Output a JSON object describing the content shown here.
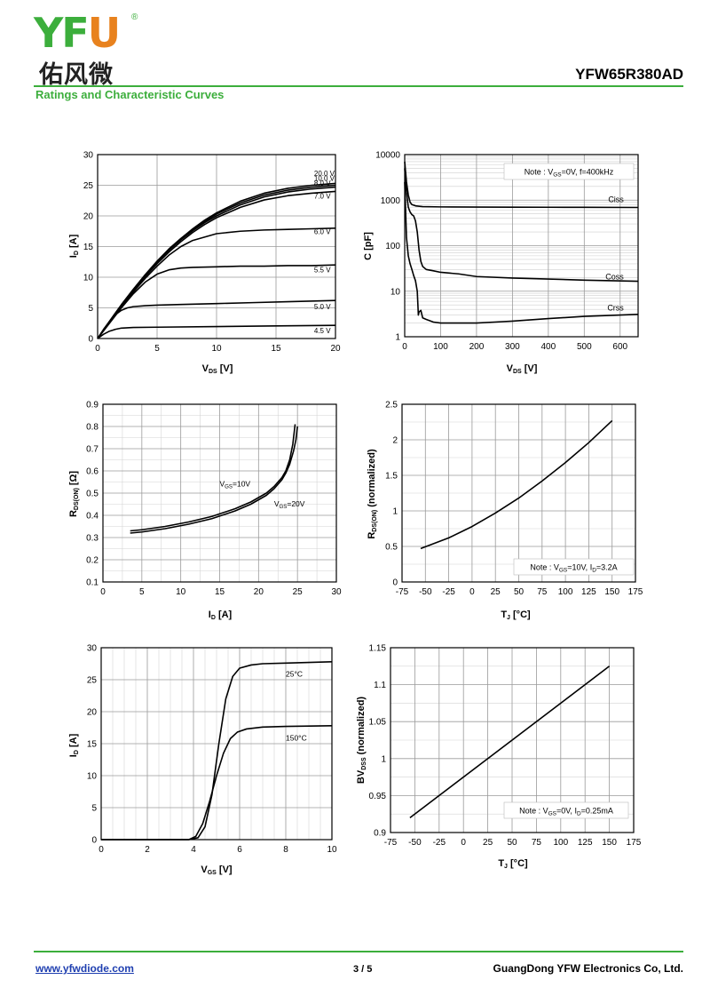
{
  "header": {
    "logo_latin_1": "YF",
    "logo_latin_2": "U",
    "logo_reg": "®",
    "logo_cn": "佑风微",
    "part_number": "YFW65R380AD",
    "section_title": "Ratings and Characteristic Curves",
    "colors": {
      "accent": "#3cae3c",
      "logo_orange": "#e8821e",
      "link": "#1f3fb0"
    }
  },
  "footer": {
    "url": "www.yfwdiode.com",
    "page": "3 / 5",
    "company": "GuangDong YFW Electronics Co, Ltd."
  },
  "chart_data": [
    {
      "type": "line",
      "xlabel": "VDS [V]",
      "ylabel": "ID [A]",
      "xlim": [
        0,
        20
      ],
      "ylim": [
        0,
        30
      ],
      "xticks": [
        0,
        5,
        10,
        15,
        20
      ],
      "yticks": [
        0,
        5,
        10,
        15,
        20,
        25,
        30
      ],
      "grid": true,
      "series": [
        {
          "name": "20.0 V",
          "x": [
            0,
            1,
            2,
            3,
            4,
            5,
            6,
            7,
            8,
            9,
            10,
            12,
            14,
            16,
            18,
            20
          ],
          "y": [
            0,
            2.8,
            5.5,
            8,
            10.4,
            12.6,
            14.6,
            16.3,
            17.9,
            19.3,
            20.5,
            22.4,
            23.7,
            24.5,
            25,
            25.3
          ]
        },
        {
          "name": "10.0 V",
          "x": [
            0,
            1,
            2,
            3,
            4,
            5,
            6,
            7,
            8,
            9,
            10,
            12,
            14,
            16,
            18,
            20
          ],
          "y": [
            0,
            2.8,
            5.5,
            8,
            10.4,
            12.6,
            14.6,
            16.3,
            17.8,
            19.1,
            20.3,
            22.1,
            23.4,
            24.2,
            24.7,
            25
          ]
        },
        {
          "name": "8.0 V",
          "x": [
            0,
            1,
            2,
            3,
            4,
            5,
            6,
            7,
            8,
            9,
            10,
            12,
            14,
            16,
            18,
            20
          ],
          "y": [
            0,
            2.8,
            5.5,
            8,
            10.3,
            12.5,
            14.4,
            16.1,
            17.6,
            18.9,
            20,
            21.8,
            23.1,
            23.9,
            24.4,
            24.7
          ]
        },
        {
          "name": "7.0 V",
          "x": [
            0,
            1,
            2,
            3,
            4,
            5,
            6,
            7,
            8,
            9,
            10,
            12,
            14,
            16,
            18,
            20
          ],
          "y": [
            0,
            2.7,
            5.4,
            7.8,
            10.1,
            12.2,
            14.1,
            15.8,
            17.3,
            18.6,
            19.7,
            21.4,
            22.6,
            23.3,
            23.7,
            24
          ]
        },
        {
          "name": "6.0 V",
          "x": [
            0,
            1,
            2,
            3,
            4,
            5,
            6,
            7,
            8,
            10,
            12,
            14,
            16,
            18,
            20
          ],
          "y": [
            0,
            2.6,
            5.2,
            7.6,
            9.8,
            11.8,
            13.6,
            15,
            16,
            17.1,
            17.5,
            17.7,
            17.8,
            17.9,
            18
          ]
        },
        {
          "name": "5.5 V",
          "x": [
            0,
            1,
            2,
            3,
            4,
            5,
            6,
            7,
            8,
            10,
            12,
            14,
            16,
            18,
            20
          ],
          "y": [
            0,
            2.5,
            5,
            7.3,
            9.2,
            10.5,
            11.2,
            11.5,
            11.6,
            11.7,
            11.8,
            11.8,
            11.9,
            11.9,
            12
          ]
        },
        {
          "name": "5.0 V",
          "x": [
            0,
            0.5,
            1,
            1.5,
            2,
            2.5,
            3,
            4,
            5,
            7,
            10,
            13,
            16,
            20
          ],
          "y": [
            0,
            1.5,
            2.8,
            3.9,
            4.6,
            5,
            5.2,
            5.35,
            5.45,
            5.55,
            5.7,
            5.85,
            6,
            6.2
          ]
        },
        {
          "name": "4.5 V",
          "x": [
            0,
            0.5,
            1,
            1.5,
            2,
            3,
            5,
            10,
            15,
            20
          ],
          "y": [
            0,
            0.7,
            1.2,
            1.5,
            1.7,
            1.8,
            1.85,
            1.95,
            2.05,
            2.15
          ]
        }
      ]
    },
    {
      "type": "line",
      "xlabel": "VDS [V]",
      "ylabel": "C [pF]",
      "xlim": [
        0,
        650
      ],
      "ylim": [
        1,
        10000
      ],
      "yscale": "log",
      "xticks": [
        0,
        100,
        200,
        300,
        400,
        500,
        600
      ],
      "yticks": [
        1,
        10,
        100,
        1000,
        10000
      ],
      "grid": true,
      "note": "Note : VGS=0V, f=400kHz",
      "series": [
        {
          "name": "Ciss",
          "x": [
            0,
            5,
            10,
            15,
            20,
            30,
            50,
            100,
            200,
            300,
            400,
            500,
            650
          ],
          "y": [
            7000,
            2500,
            1300,
            900,
            800,
            750,
            720,
            710,
            705,
            700,
            698,
            695,
            690
          ]
        },
        {
          "name": "Coss",
          "x": [
            0,
            5,
            10,
            15,
            20,
            25,
            30,
            35,
            40,
            45,
            50,
            60,
            80,
            100,
            150,
            200,
            300,
            400,
            500,
            650
          ],
          "y": [
            5000,
            1500,
            700,
            550,
            480,
            450,
            350,
            200,
            80,
            45,
            35,
            30,
            28,
            26,
            24,
            21,
            19.5,
            18.5,
            17.5,
            16.5
          ]
        },
        {
          "name": "Crss",
          "x": [
            0,
            5,
            10,
            15,
            20,
            25,
            30,
            35,
            38,
            40,
            45,
            50,
            60,
            80,
            100,
            150,
            200,
            250,
            300,
            400,
            500,
            650
          ],
          "y": [
            2500,
            150,
            60,
            40,
            30,
            22,
            17,
            10,
            3,
            3.5,
            3.8,
            2.6,
            2.4,
            2.1,
            2,
            2,
            2,
            2.1,
            2.2,
            2.5,
            2.8,
            3.1
          ]
        }
      ]
    },
    {
      "type": "line",
      "xlabel": "ID [A]",
      "ylabel": "RDS(ON) [Ω]",
      "xlim": [
        0,
        30
      ],
      "ylim": [
        0.1,
        0.9
      ],
      "xticks": [
        0,
        5,
        10,
        15,
        20,
        25,
        30
      ],
      "yticks": [
        0.1,
        0.2,
        0.3,
        0.4,
        0.5,
        0.6,
        0.7,
        0.8,
        0.9
      ],
      "grid": true,
      "series": [
        {
          "name": "VGS=10V",
          "x": [
            3.5,
            5,
            8,
            11,
            14,
            17,
            19,
            21,
            22,
            23,
            23.5,
            24,
            24.4,
            24.7
          ],
          "y": [
            0.33,
            0.335,
            0.35,
            0.37,
            0.395,
            0.43,
            0.46,
            0.5,
            0.53,
            0.57,
            0.6,
            0.65,
            0.72,
            0.81
          ]
        },
        {
          "name": "VGS=20V",
          "x": [
            3.5,
            5,
            8,
            11,
            14,
            17,
            19,
            21,
            22,
            23,
            23.5,
            24,
            24.5,
            24.8,
            25
          ],
          "y": [
            0.32,
            0.325,
            0.34,
            0.36,
            0.385,
            0.42,
            0.45,
            0.49,
            0.52,
            0.56,
            0.59,
            0.63,
            0.69,
            0.74,
            0.8
          ]
        }
      ]
    },
    {
      "type": "line",
      "xlabel": "TJ [°C]",
      "ylabel": "RDS(ON) (normalized)",
      "xlim": [
        -75,
        175
      ],
      "ylim": [
        0,
        2.5
      ],
      "xticks": [
        -75,
        -50,
        -25,
        0,
        25,
        50,
        75,
        100,
        125,
        150,
        175
      ],
      "yticks": [
        0,
        0.5,
        1,
        1.5,
        2,
        2.5
      ],
      "grid": true,
      "note": "Note : VGS=10V, ID=3.2A",
      "series": [
        {
          "name": "",
          "x": [
            -55,
            -25,
            0,
            25,
            50,
            75,
            100,
            125,
            150
          ],
          "y": [
            0.47,
            0.62,
            0.78,
            0.97,
            1.18,
            1.42,
            1.68,
            1.96,
            2.27
          ]
        }
      ]
    },
    {
      "type": "line",
      "xlabel": "VGS [V]",
      "ylabel": "ID [A]",
      "xlim": [
        0,
        10
      ],
      "ylim": [
        0,
        30
      ],
      "xticks": [
        0,
        2,
        4,
        6,
        8,
        10
      ],
      "yticks": [
        0,
        5,
        10,
        15,
        20,
        25,
        30
      ],
      "grid": true,
      "series": [
        {
          "name": "25°C",
          "x": [
            0,
            3.8,
            4.2,
            4.5,
            4.8,
            5.1,
            5.4,
            5.7,
            6,
            6.5,
            7,
            8,
            10
          ],
          "y": [
            0,
            0,
            0.3,
            2,
            7,
            15,
            22,
            25.5,
            26.8,
            27.3,
            27.5,
            27.6,
            27.8
          ]
        },
        {
          "name": "150°C",
          "x": [
            0,
            3.8,
            4.1,
            4.4,
            4.7,
            5,
            5.3,
            5.6,
            5.9,
            6.3,
            7,
            8,
            10
          ],
          "y": [
            0,
            0,
            0.5,
            2.5,
            6,
            10,
            13.5,
            15.8,
            16.8,
            17.3,
            17.6,
            17.7,
            17.8
          ]
        }
      ]
    },
    {
      "type": "line",
      "xlabel": "TJ [°C]",
      "ylabel": "BVDSS (normalized)",
      "xlim": [
        -75,
        175
      ],
      "ylim": [
        0.9,
        1.15
      ],
      "xticks": [
        -75,
        -50,
        -25,
        0,
        25,
        50,
        75,
        100,
        125,
        150,
        175
      ],
      "yticks": [
        0.9,
        0.95,
        1,
        1.05,
        1.1,
        1.15
      ],
      "grid": true,
      "note": "Note : VGS=0V, ID=0.25mA",
      "series": [
        {
          "name": "",
          "x": [
            -55,
            150
          ],
          "y": [
            0.92,
            1.125
          ]
        }
      ]
    }
  ]
}
